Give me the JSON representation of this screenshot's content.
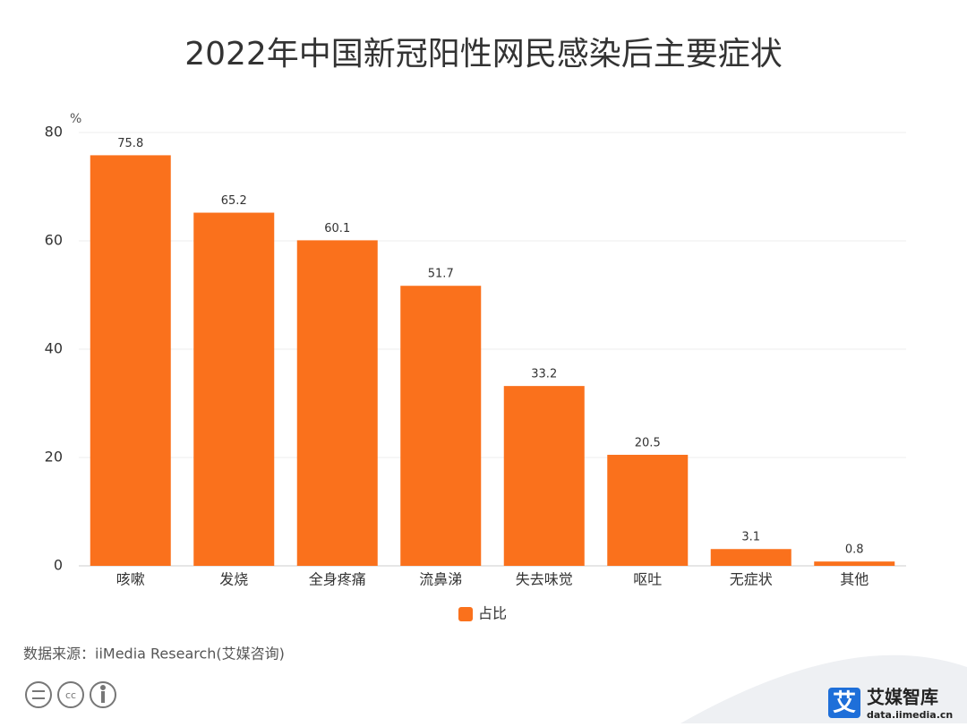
{
  "chart_data": {
    "type": "bar",
    "title": "2022年中国新冠阳性网民感染后主要症状",
    "y_unit": "%",
    "categories": [
      "咳嗽",
      "发烧",
      "全身疼痛",
      "流鼻涕",
      "失去味觉",
      "呕吐",
      "无症状",
      "其他"
    ],
    "series": [
      {
        "name": "占比",
        "color": "#fa711c",
        "values": [
          75.8,
          65.2,
          60.1,
          51.7,
          33.2,
          20.5,
          3.1,
          0.8
        ]
      }
    ],
    "ylim": [
      0,
      80
    ],
    "yticks": [
      0,
      20,
      40,
      60,
      80
    ],
    "grid": true,
    "legend": "bottom",
    "source": "数据来源：iiMedia Research(艾媒咨询)"
  },
  "brand": {
    "icon": "艾",
    "name": "艾媒智库",
    "url": "data.iimedia.cn"
  }
}
